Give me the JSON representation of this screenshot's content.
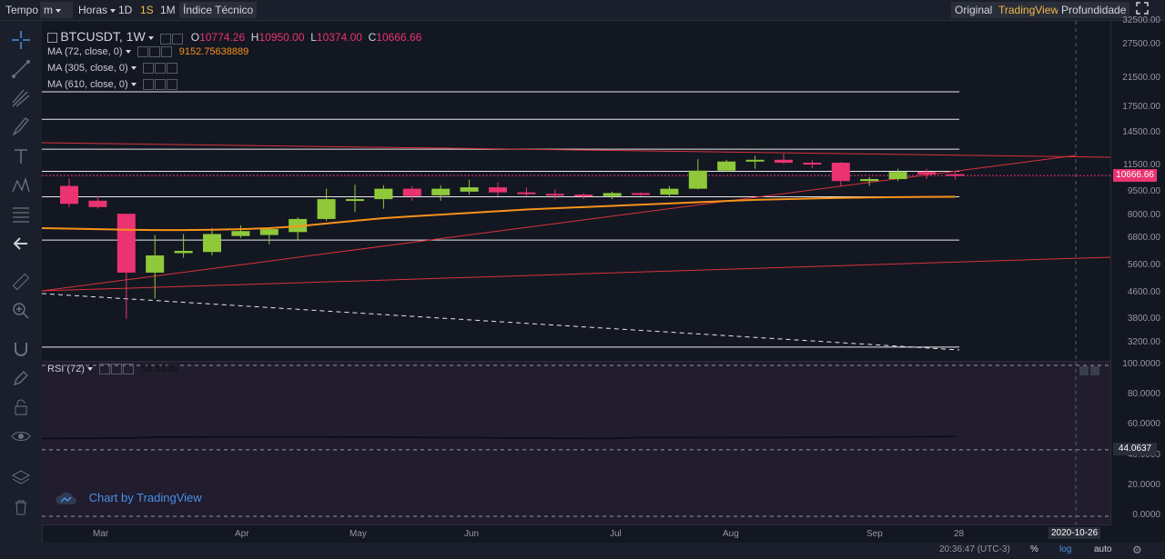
{
  "toolbar": {
    "tempo": "Tempo",
    "interval": "m",
    "horas": "Horas",
    "d1": "1D",
    "s1": "1S",
    "m1": "1M",
    "indicator": "Índice Técnico",
    "original": "Original",
    "tradingview": "TradingView",
    "depth": "Profundidade"
  },
  "legend": {
    "symbol": "BTCUSDT, 1W",
    "open_label": "O",
    "open": "10774.26",
    "high_label": "H",
    "high": "10950.00",
    "low_label": "L",
    "low": "10374.00",
    "close_label": "C",
    "close": "10666.66",
    "ma1": "MA (72, close, 0)",
    "ma1_value": "9152.75638889",
    "ma2": "MA (305, close, 0)",
    "ma3": "MA (610, close, 0)",
    "rsi": "RSI (72)",
    "rsi_value": "53.6335"
  },
  "price_axis": [
    "32500.00",
    "27500.00",
    "21500.00",
    "17500.00",
    "14500.00",
    "11500.00",
    "9500.00",
    "8000.00",
    "6800.00",
    "5600.00",
    "4600.00",
    "3800.00",
    "3200.00"
  ],
  "last_price": "10666.66",
  "rsi_axis": [
    "100.0000",
    "80.0000",
    "60.0000",
    "40.0000",
    "20.0000",
    "0.0000"
  ],
  "rsi_label": "44.0637",
  "x_axis": [
    "Mar",
    "Apr",
    "May",
    "Jun",
    "Jul",
    "Aug",
    "Sep",
    "28"
  ],
  "cursor_date": "2020-10-26",
  "footer": {
    "time": "20:36:47 (UTC-3)",
    "pct": "%",
    "log": "log",
    "auto": "auto"
  },
  "watermark": "Chart by TradingView",
  "colors": {
    "up": "#8fc93a",
    "down": "#ea3370",
    "ma": "#f7931a",
    "accent": "#f0b84a",
    "bg": "#131722"
  },
  "chart_data": {
    "type": "candlestick",
    "symbol": "BTCUSDT",
    "interval": "1W",
    "scale": "log",
    "ylim": [
      3000,
      35000
    ],
    "x_ticks": [
      "Mar",
      "Apr",
      "May",
      "Jun",
      "Jul",
      "Aug",
      "Sep",
      "28"
    ],
    "candles": [
      {
        "o": 9900,
        "h": 10450,
        "l": 8500,
        "c": 8700
      },
      {
        "o": 8900,
        "h": 9200,
        "l": 8400,
        "c": 8500
      },
      {
        "o": 8100,
        "h": 8100,
        "l": 3800,
        "c": 5300
      },
      {
        "o": 5300,
        "h": 6950,
        "l": 4400,
        "c": 6000
      },
      {
        "o": 6100,
        "h": 7000,
        "l": 5900,
        "c": 6200
      },
      {
        "o": 6150,
        "h": 7300,
        "l": 6000,
        "c": 7000
      },
      {
        "o": 6900,
        "h": 7450,
        "l": 6800,
        "c": 7150
      },
      {
        "o": 6950,
        "h": 7300,
        "l": 6500,
        "c": 7250
      },
      {
        "o": 7100,
        "h": 7900,
        "l": 6700,
        "c": 7800
      },
      {
        "o": 7800,
        "h": 9700,
        "l": 7700,
        "c": 9000
      },
      {
        "o": 8900,
        "h": 10000,
        "l": 8200,
        "c": 9000
      },
      {
        "o": 9000,
        "h": 9950,
        "l": 8400,
        "c": 9700
      },
      {
        "o": 9700,
        "h": 9900,
        "l": 8900,
        "c": 9200
      },
      {
        "o": 9250,
        "h": 9950,
        "l": 8900,
        "c": 9700
      },
      {
        "o": 9500,
        "h": 10350,
        "l": 9300,
        "c": 9800
      },
      {
        "o": 9800,
        "h": 10150,
        "l": 9200,
        "c": 9450
      },
      {
        "o": 9450,
        "h": 9800,
        "l": 9200,
        "c": 9350
      },
      {
        "o": 9350,
        "h": 9650,
        "l": 9000,
        "c": 9300
      },
      {
        "o": 9300,
        "h": 9400,
        "l": 9000,
        "c": 9200
      },
      {
        "o": 9200,
        "h": 9500,
        "l": 9000,
        "c": 9400
      },
      {
        "o": 9400,
        "h": 9450,
        "l": 9200,
        "c": 9300
      },
      {
        "o": 9300,
        "h": 9900,
        "l": 9150,
        "c": 9700
      },
      {
        "o": 9700,
        "h": 12000,
        "l": 9650,
        "c": 11050
      },
      {
        "o": 11050,
        "h": 11950,
        "l": 10950,
        "c": 11800
      },
      {
        "o": 11800,
        "h": 12300,
        "l": 11200,
        "c": 11950
      },
      {
        "o": 11950,
        "h": 12500,
        "l": 11600,
        "c": 11700
      },
      {
        "o": 11700,
        "h": 11900,
        "l": 11250,
        "c": 11650
      },
      {
        "o": 11700,
        "h": 11750,
        "l": 9850,
        "c": 10250
      },
      {
        "o": 10250,
        "h": 10550,
        "l": 9900,
        "c": 10400
      },
      {
        "o": 10400,
        "h": 11200,
        "l": 10250,
        "c": 10950
      },
      {
        "o": 10950,
        "h": 11200,
        "l": 10400,
        "c": 10750
      },
      {
        "o": 10774.26,
        "h": 10950,
        "l": 10374,
        "c": 10666.66
      }
    ],
    "moving_averages": [
      {
        "name": "MA (72, close, 0)",
        "last": 9152.75638889
      }
    ],
    "horizontal_levels": [
      19500,
      16000,
      12900,
      11000,
      9150,
      6700,
      3100
    ],
    "rsi": {
      "name": "RSI (72)",
      "last": 53.6335,
      "ylim": [
        0,
        100
      ],
      "levels": [
        100,
        44.0637,
        0
      ]
    }
  }
}
